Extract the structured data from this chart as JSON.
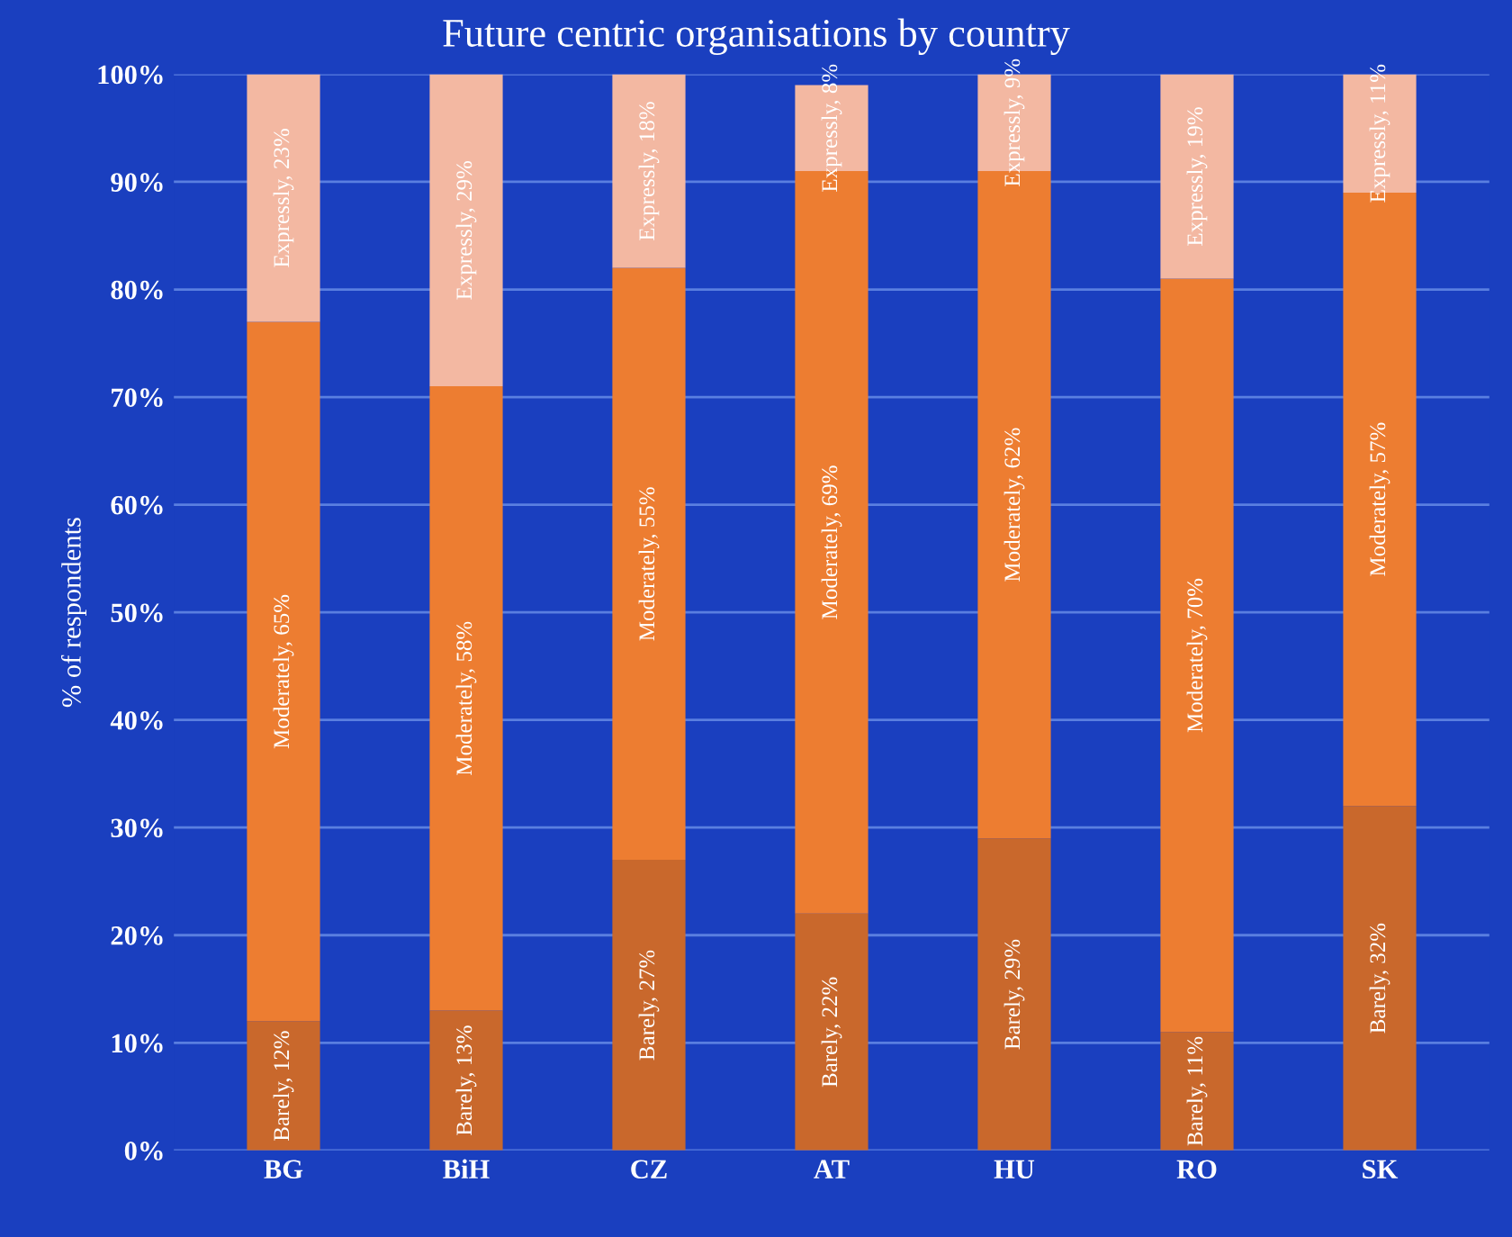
{
  "chart_data": {
    "type": "bar",
    "stacked": true,
    "title": "Future centric organisations by country",
    "ylabel": "% of respondents",
    "categories": [
      "BG",
      "BiH",
      "CZ",
      "AT",
      "HU",
      "RO",
      "SK"
    ],
    "series": [
      {
        "color": "#c9682c",
        "values": [
          12,
          13,
          27,
          22,
          29,
          11,
          32
        ],
        "value_labels": [
          "Barely, 12%",
          "Barely, 13%",
          "Barely, 27%",
          "Barely, 22%",
          "Barely, 29%",
          "Barely, 11%",
          "Barely, 32%"
        ]
      },
      {
        "color": "#ed7d31",
        "values": [
          65,
          58,
          55,
          69,
          62,
          70,
          57
        ],
        "value_labels": [
          "Moderately, 65%",
          "Moderately, 58%",
          "Moderately, 55%",
          "Moderately, 69%",
          "Moderately, 62%",
          "Moderately, 70%",
          "Moderately, 57%"
        ]
      },
      {
        "color": "#f3b8a2",
        "values": [
          23,
          29,
          18,
          8,
          9,
          19,
          11
        ],
        "value_labels": [
          "Expressly, 23%",
          "Expressly, 29%",
          "Expressly, 18%",
          "Expressly, 8%",
          "Expressly, 9%",
          "Expressly, 19%",
          "Expressly, 11%"
        ]
      }
    ],
    "ylim": [
      0,
      100
    ],
    "yticks": [
      {
        "value": 0,
        "label": "0%"
      },
      {
        "value": 10,
        "label": "10%"
      },
      {
        "value": 20,
        "label": "20%"
      },
      {
        "value": 30,
        "label": "30%"
      },
      {
        "value": 40,
        "label": "40%"
      },
      {
        "value": 50,
        "label": "50%"
      },
      {
        "value": 60,
        "label": "60%"
      },
      {
        "value": 70,
        "label": "70%"
      },
      {
        "value": 80,
        "label": "80%"
      },
      {
        "value": 90,
        "label": "90%"
      },
      {
        "value": 100,
        "label": "100%"
      }
    ],
    "grid": "y",
    "legend": false
  }
}
